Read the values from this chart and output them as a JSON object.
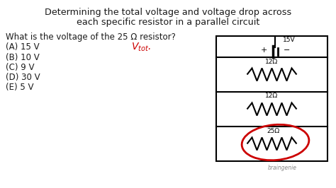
{
  "title_line1": "Determining the total voltage and voltage drop across",
  "title_line2": "each specific resistor in a parallel circuit",
  "question": "What is the voltage of the 25 Ω resistor?",
  "options": [
    "(A) 15 V",
    "(B) 10 V",
    "(C) 9 V",
    "(D) 30 V",
    "(E) 5 V"
  ],
  "annotation_color": "#cc0000",
  "background_color": "#ffffff",
  "resistor_labels": [
    "12Ω",
    "12Ω",
    "25Ω"
  ],
  "voltage_label": "15V",
  "braingenie_text": "braingenie",
  "font_color": "#1a1a1a"
}
